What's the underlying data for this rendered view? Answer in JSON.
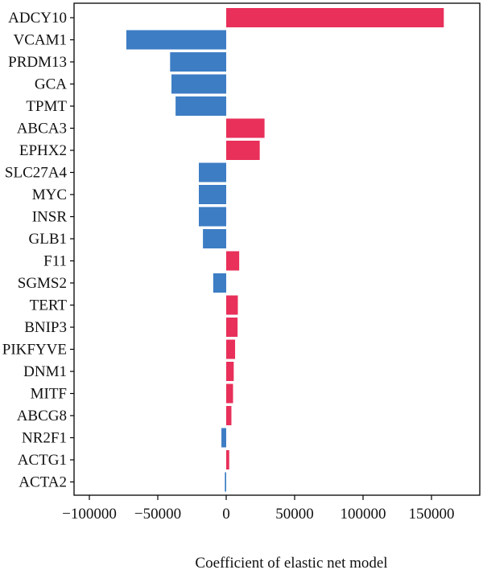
{
  "chart_data": {
    "type": "bar",
    "orientation": "horizontal",
    "title": "",
    "xlabel": "Coefficient of elastic net model",
    "ylabel": "",
    "xlim": [
      -100000,
      165000
    ],
    "xticks": [
      -100000,
      -50000,
      0,
      50000,
      100000,
      150000
    ],
    "xtick_labels": [
      "−100000",
      "−50000",
      "0",
      "50000",
      "100000",
      "150000"
    ],
    "grid": false,
    "colors": {
      "positive": "#e8305a",
      "negative": "#3d7dc4"
    },
    "categories": [
      "ADCY10",
      "VCAM1",
      "PRDM13",
      "GCA",
      "TPMT",
      "ABCA3",
      "EPHX2",
      "SLC27A4",
      "MYC",
      "INSR",
      "GLB1",
      "F11",
      "SGMS2",
      "TERT",
      "BNIP3",
      "PIKFYVE",
      "DNM1",
      "MITF",
      "ABCG8",
      "NR2F1",
      "ACTG1",
      "ACTA2"
    ],
    "values": [
      159000,
      -73000,
      -41000,
      -40000,
      -37000,
      28000,
      24500,
      -20000,
      -20000,
      -20000,
      -17000,
      9500,
      -9500,
      8500,
      8300,
      6500,
      5500,
      5000,
      3800,
      -3500,
      2200,
      -1000
    ]
  }
}
